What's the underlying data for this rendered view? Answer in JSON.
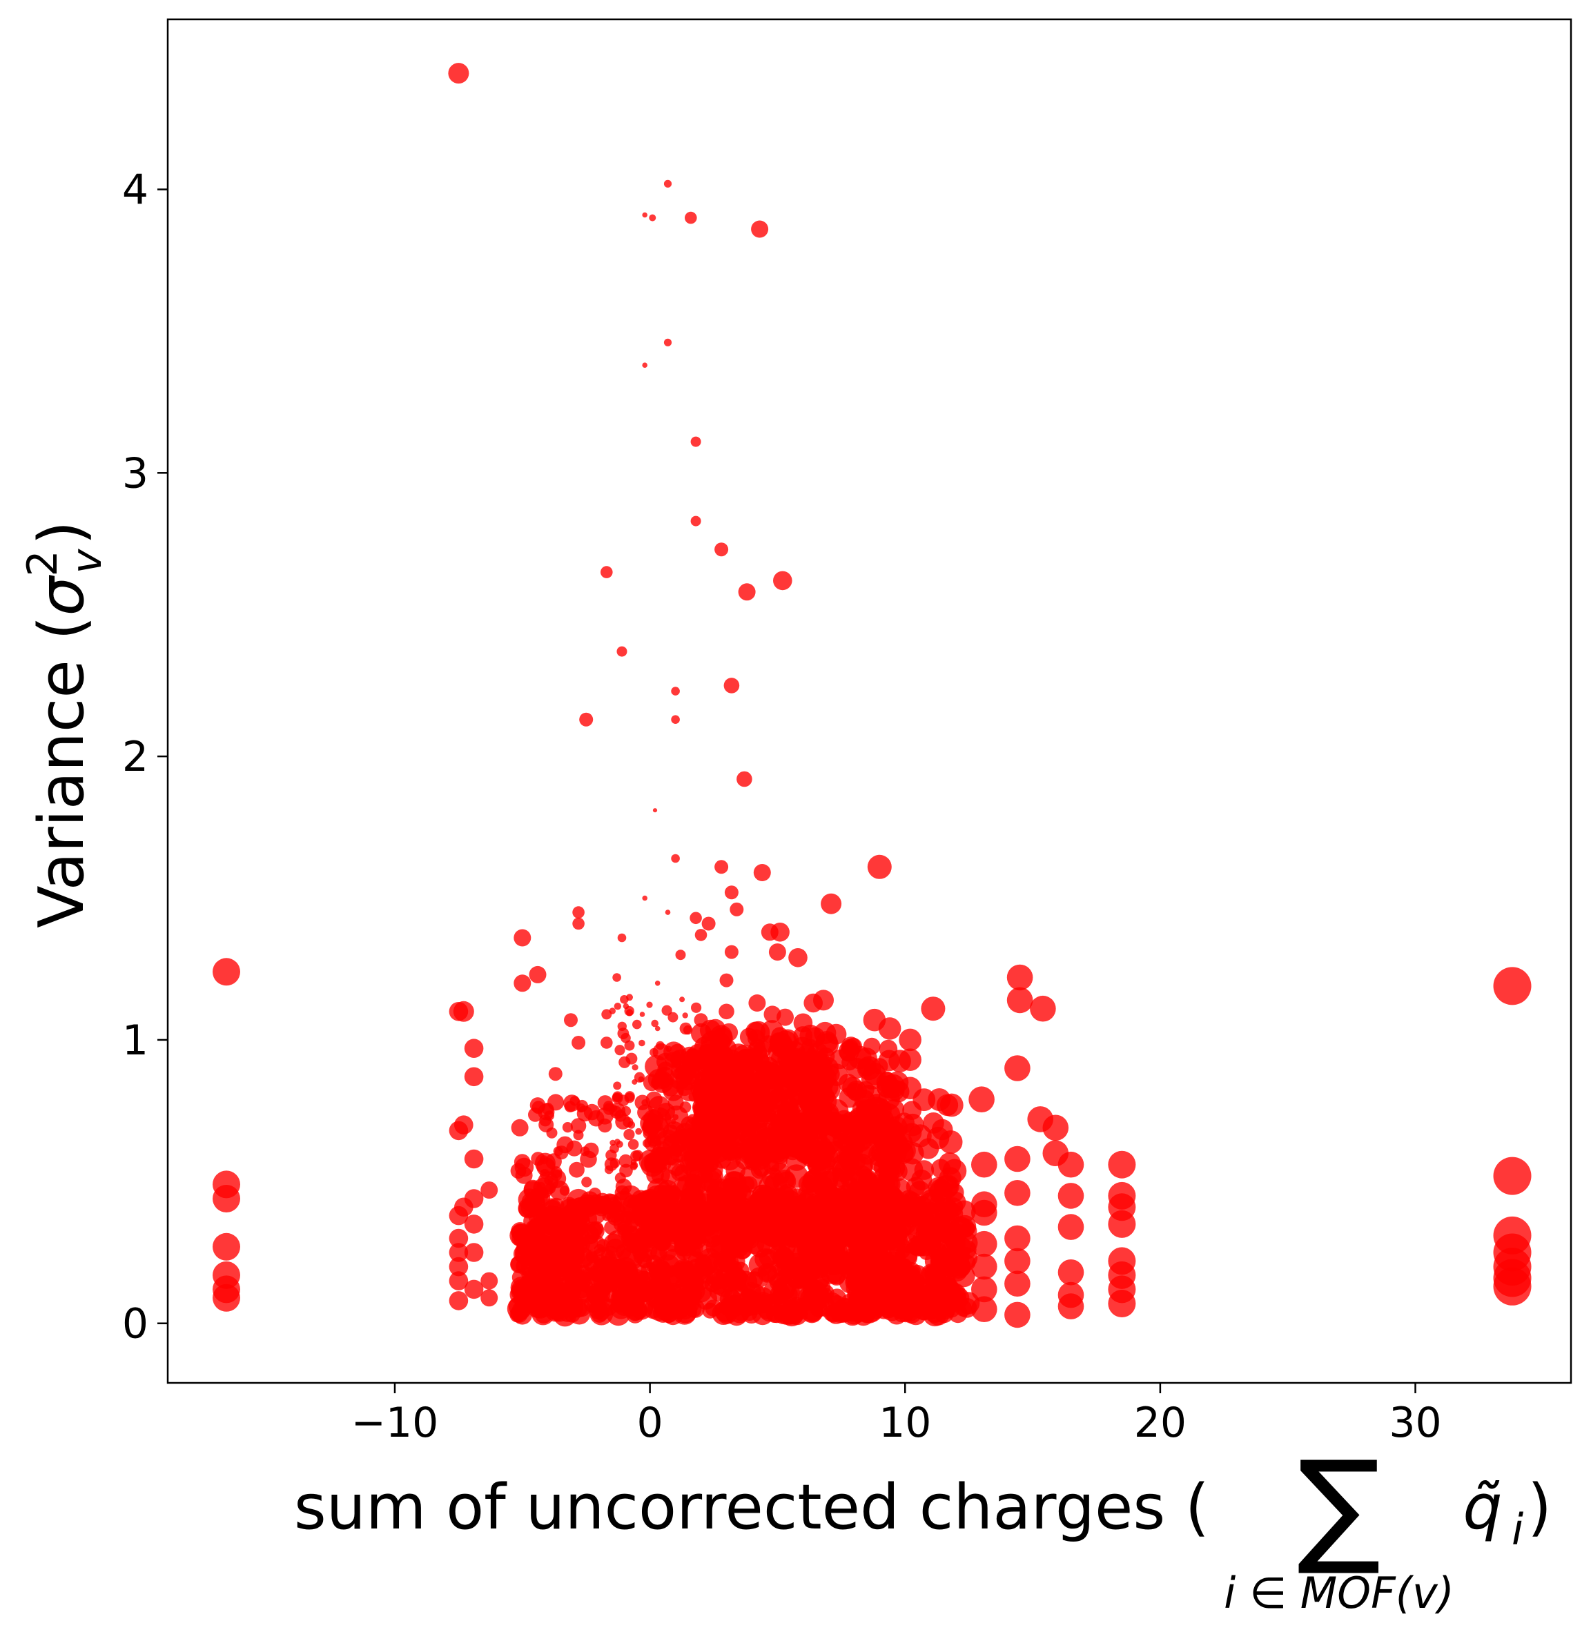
{
  "chart_data": {
    "type": "scatter",
    "title": "",
    "xlabel": {
      "prefix": "sum of uncorrected charges (",
      "sigma": "∑",
      "subscript": "i ∈ MOF(v)",
      "term": "q̃",
      "term_sub": "i",
      "suffix": ")"
    },
    "ylabel": {
      "prefix": "Variance (",
      "symbol": "σ",
      "sup": "2",
      "sub": "v",
      "suffix": ")"
    },
    "xlim": [
      -18.9,
      36.1
    ],
    "ylim": [
      -0.21,
      4.6
    ],
    "xticks": [
      -10,
      0,
      10,
      20,
      30
    ],
    "xtick_labels": [
      "−10",
      "0",
      "10",
      "20",
      "30"
    ],
    "yticks": [
      0,
      1,
      2,
      3,
      4
    ],
    "ytick_labels": [
      "0",
      "1",
      "2",
      "3",
      "4"
    ],
    "grid": false,
    "legend": "none",
    "marker_color": "#ff0000",
    "note": "Marker size varies per point; a dense cluster of several thousand points lies between x ≈ −5 and x ≈ 12 with y below ≈ 1.1.",
    "points": [
      {
        "x": -7.5,
        "y": 4.41,
        "s": 1.2
      },
      {
        "x": 0.7,
        "y": 4.02,
        "s": 0.45
      },
      {
        "x": -0.2,
        "y": 3.91,
        "s": 0.3
      },
      {
        "x": 0.1,
        "y": 3.9,
        "s": 0.4
      },
      {
        "x": 1.6,
        "y": 3.9,
        "s": 0.7
      },
      {
        "x": 4.3,
        "y": 3.86,
        "s": 1.0
      },
      {
        "x": 0.7,
        "y": 3.46,
        "s": 0.45
      },
      {
        "x": -0.2,
        "y": 3.38,
        "s": 0.3
      },
      {
        "x": 1.8,
        "y": 3.11,
        "s": 0.6
      },
      {
        "x": 1.8,
        "y": 2.83,
        "s": 0.6
      },
      {
        "x": 2.8,
        "y": 2.73,
        "s": 0.8
      },
      {
        "x": -1.7,
        "y": 2.65,
        "s": 0.7
      },
      {
        "x": 5.2,
        "y": 2.62,
        "s": 1.1
      },
      {
        "x": 3.8,
        "y": 2.58,
        "s": 1.0
      },
      {
        "x": -1.1,
        "y": 2.37,
        "s": 0.6
      },
      {
        "x": 1.0,
        "y": 2.23,
        "s": 0.5
      },
      {
        "x": 3.2,
        "y": 2.25,
        "s": 0.9
      },
      {
        "x": -2.5,
        "y": 2.13,
        "s": 0.8
      },
      {
        "x": 1.0,
        "y": 2.13,
        "s": 0.5
      },
      {
        "x": 3.7,
        "y": 1.92,
        "s": 0.9
      },
      {
        "x": 0.2,
        "y": 1.81,
        "s": 0.25
      },
      {
        "x": 9.0,
        "y": 1.61,
        "s": 1.4
      },
      {
        "x": 2.8,
        "y": 1.61,
        "s": 0.8
      },
      {
        "x": 4.4,
        "y": 1.59,
        "s": 1.0
      },
      {
        "x": 1.0,
        "y": 1.64,
        "s": 0.5
      },
      {
        "x": 3.2,
        "y": 1.52,
        "s": 0.8
      },
      {
        "x": 7.1,
        "y": 1.48,
        "s": 1.2
      },
      {
        "x": 3.4,
        "y": 1.46,
        "s": 0.8
      },
      {
        "x": -2.8,
        "y": 1.45,
        "s": 0.7
      },
      {
        "x": -2.8,
        "y": 1.41,
        "s": 0.7
      },
      {
        "x": -0.2,
        "y": 1.5,
        "s": 0.3
      },
      {
        "x": 0.7,
        "y": 1.45,
        "s": 0.3
      },
      {
        "x": 1.8,
        "y": 1.43,
        "s": 0.7
      },
      {
        "x": 2.3,
        "y": 1.41,
        "s": 0.8
      },
      {
        "x": 2.0,
        "y": 1.37,
        "s": 0.7
      },
      {
        "x": 4.7,
        "y": 1.38,
        "s": 1.0
      },
      {
        "x": 5.1,
        "y": 1.38,
        "s": 1.1
      },
      {
        "x": -5.0,
        "y": 1.36,
        "s": 1.0
      },
      {
        "x": -1.1,
        "y": 1.36,
        "s": 0.5
      },
      {
        "x": 3.2,
        "y": 1.31,
        "s": 0.8
      },
      {
        "x": 1.2,
        "y": 1.3,
        "s": 0.6
      },
      {
        "x": 5.0,
        "y": 1.31,
        "s": 1.0
      },
      {
        "x": 5.8,
        "y": 1.29,
        "s": 1.1
      },
      {
        "x": -4.4,
        "y": 1.23,
        "s": 1.0
      },
      {
        "x": -1.3,
        "y": 1.22,
        "s": 0.5
      },
      {
        "x": 0.3,
        "y": 1.2,
        "s": 0.3
      },
      {
        "x": 3.0,
        "y": 1.21,
        "s": 0.8
      },
      {
        "x": -5.0,
        "y": 1.2,
        "s": 1.0
      },
      {
        "x": -16.6,
        "y": 1.24,
        "s": 1.6
      },
      {
        "x": 33.8,
        "y": 1.19,
        "s": 2.2
      },
      {
        "x": 14.5,
        "y": 1.22,
        "s": 1.5
      },
      {
        "x": 14.5,
        "y": 1.14,
        "s": 1.5
      },
      {
        "x": 15.4,
        "y": 1.11,
        "s": 1.5
      },
      {
        "x": 11.1,
        "y": 1.11,
        "s": 1.4
      },
      {
        "x": -7.3,
        "y": 1.1,
        "s": 1.2
      },
      {
        "x": -7.5,
        "y": 1.1,
        "s": 1.1
      },
      {
        "x": -1.7,
        "y": 1.09,
        "s": 0.6
      },
      {
        "x": -3.1,
        "y": 1.07,
        "s": 0.8
      },
      {
        "x": -0.8,
        "y": 1.15,
        "s": 0.4
      },
      {
        "x": 8.8,
        "y": 1.07,
        "s": 1.3
      },
      {
        "x": 9.4,
        "y": 1.04,
        "s": 1.3
      },
      {
        "x": -6.9,
        "y": 0.97,
        "s": 1.1
      },
      {
        "x": -2.8,
        "y": 0.99,
        "s": 0.8
      },
      {
        "x": -1.7,
        "y": 0.99,
        "s": 0.7
      },
      {
        "x": -0.8,
        "y": 0.98,
        "s": 0.6
      },
      {
        "x": 10.2,
        "y": 1.0,
        "s": 1.3
      },
      {
        "x": 10.2,
        "y": 0.93,
        "s": 1.3
      },
      {
        "x": -6.9,
        "y": 0.87,
        "s": 1.1
      },
      {
        "x": 14.4,
        "y": 0.9,
        "s": 1.5
      },
      {
        "x": -3.7,
        "y": 0.88,
        "s": 0.8
      },
      {
        "x": 8.1,
        "y": 0.9,
        "s": 1.2
      },
      {
        "x": 10.2,
        "y": 0.83,
        "s": 1.3
      },
      {
        "x": 13.0,
        "y": 0.79,
        "s": 1.5
      },
      {
        "x": 8.9,
        "y": 0.77,
        "s": 1.3
      },
      {
        "x": -4.4,
        "y": 0.77,
        "s": 0.9
      },
      {
        "x": 15.3,
        "y": 0.72,
        "s": 1.5
      },
      {
        "x": 15.9,
        "y": 0.69,
        "s": 1.5
      },
      {
        "x": -7.3,
        "y": 0.7,
        "s": 1.1
      },
      {
        "x": -7.5,
        "y": 0.68,
        "s": 1.1
      },
      {
        "x": -5.1,
        "y": 0.69,
        "s": 1.0
      },
      {
        "x": 10.3,
        "y": 0.7,
        "s": 1.3
      },
      {
        "x": 15.9,
        "y": 0.6,
        "s": 1.5
      },
      {
        "x": 10.3,
        "y": 0.6,
        "s": 1.3
      },
      {
        "x": -6.9,
        "y": 0.58,
        "s": 1.1
      },
      {
        "x": 14.4,
        "y": 0.58,
        "s": 1.5
      },
      {
        "x": 16.5,
        "y": 0.56,
        "s": 1.5
      },
      {
        "x": 13.1,
        "y": 0.56,
        "s": 1.5
      },
      {
        "x": 18.5,
        "y": 0.56,
        "s": 1.6
      },
      {
        "x": 33.8,
        "y": 0.52,
        "s": 2.2
      },
      {
        "x": -16.6,
        "y": 0.49,
        "s": 1.6
      },
      {
        "x": -16.6,
        "y": 0.44,
        "s": 1.6
      },
      {
        "x": 18.5,
        "y": 0.45,
        "s": 1.6
      },
      {
        "x": 18.5,
        "y": 0.41,
        "s": 1.6
      },
      {
        "x": 18.5,
        "y": 0.35,
        "s": 1.6
      },
      {
        "x": 14.4,
        "y": 0.46,
        "s": 1.5
      },
      {
        "x": 16.5,
        "y": 0.45,
        "s": 1.5
      },
      {
        "x": 11.6,
        "y": 0.48,
        "s": 1.4
      },
      {
        "x": -6.3,
        "y": 0.47,
        "s": 1.0
      },
      {
        "x": 13.1,
        "y": 0.42,
        "s": 1.5
      },
      {
        "x": 13.1,
        "y": 0.39,
        "s": 1.5
      },
      {
        "x": 16.5,
        "y": 0.34,
        "s": 1.5
      },
      {
        "x": 33.8,
        "y": 0.31,
        "s": 2.2
      },
      {
        "x": 33.8,
        "y": 0.25,
        "s": 2.2
      },
      {
        "x": 33.8,
        "y": 0.2,
        "s": 2.2
      },
      {
        "x": 33.8,
        "y": 0.16,
        "s": 2.2
      },
      {
        "x": 33.8,
        "y": 0.13,
        "s": 2.2
      },
      {
        "x": -16.6,
        "y": 0.27,
        "s": 1.6
      },
      {
        "x": -16.6,
        "y": 0.17,
        "s": 1.6
      },
      {
        "x": -16.6,
        "y": 0.12,
        "s": 1.6
      },
      {
        "x": -16.6,
        "y": 0.09,
        "s": 1.6
      },
      {
        "x": 18.5,
        "y": 0.22,
        "s": 1.6
      },
      {
        "x": 18.5,
        "y": 0.17,
        "s": 1.6
      },
      {
        "x": 18.5,
        "y": 0.12,
        "s": 1.6
      },
      {
        "x": 18.5,
        "y": 0.07,
        "s": 1.6
      },
      {
        "x": 16.5,
        "y": 0.18,
        "s": 1.5
      },
      {
        "x": 16.5,
        "y": 0.1,
        "s": 1.5
      },
      {
        "x": 16.5,
        "y": 0.06,
        "s": 1.5
      },
      {
        "x": 14.4,
        "y": 0.3,
        "s": 1.5
      },
      {
        "x": 14.4,
        "y": 0.22,
        "s": 1.5
      },
      {
        "x": 14.4,
        "y": 0.14,
        "s": 1.5
      },
      {
        "x": 14.4,
        "y": 0.03,
        "s": 1.5
      },
      {
        "x": 13.1,
        "y": 0.28,
        "s": 1.5
      },
      {
        "x": 13.1,
        "y": 0.2,
        "s": 1.5
      },
      {
        "x": 13.1,
        "y": 0.12,
        "s": 1.5
      },
      {
        "x": 13.1,
        "y": 0.05,
        "s": 1.5
      },
      {
        "x": -7.5,
        "y": 0.38,
        "s": 1.1
      },
      {
        "x": -7.3,
        "y": 0.41,
        "s": 1.1
      },
      {
        "x": -7.5,
        "y": 0.3,
        "s": 1.1
      },
      {
        "x": -7.5,
        "y": 0.25,
        "s": 1.1
      },
      {
        "x": -7.5,
        "y": 0.2,
        "s": 1.1
      },
      {
        "x": -7.5,
        "y": 0.15,
        "s": 1.1
      },
      {
        "x": -7.5,
        "y": 0.08,
        "s": 1.1
      },
      {
        "x": -6.9,
        "y": 0.44,
        "s": 1.1
      },
      {
        "x": -6.9,
        "y": 0.35,
        "s": 1.1
      },
      {
        "x": -6.9,
        "y": 0.25,
        "s": 1.1
      },
      {
        "x": -6.9,
        "y": 0.12,
        "s": 1.1
      },
      {
        "x": -6.3,
        "y": 0.15,
        "s": 1.0
      },
      {
        "x": -6.3,
        "y": 0.09,
        "s": 1.0
      },
      {
        "x": 8.1,
        "y": 0.82,
        "s": 1.2
      },
      {
        "x": 8.8,
        "y": 0.88,
        "s": 1.3
      },
      {
        "x": 7.8,
        "y": 0.96,
        "s": 1.2
      },
      {
        "x": 7.3,
        "y": 1.02,
        "s": 1.2
      },
      {
        "x": 6.4,
        "y": 1.13,
        "s": 1.1
      },
      {
        "x": 6.8,
        "y": 1.14,
        "s": 1.2
      },
      {
        "x": 6.0,
        "y": 1.06,
        "s": 1.1
      },
      {
        "x": 4.2,
        "y": 1.13,
        "s": 1.0
      },
      {
        "x": 4.8,
        "y": 1.09,
        "s": 1.0
      },
      {
        "x": 5.3,
        "y": 1.08,
        "s": 1.0
      },
      {
        "x": 3.0,
        "y": 1.1,
        "s": 0.9
      },
      {
        "x": 2.0,
        "y": 1.07,
        "s": 0.8
      },
      {
        "x": 1.4,
        "y": 1.04,
        "s": 0.7
      },
      {
        "x": 0.4,
        "y": 0.98,
        "s": 0.5
      },
      {
        "x": 0.9,
        "y": 1.08,
        "s": 0.6
      },
      {
        "x": -0.3,
        "y": 1.09,
        "s": 0.3
      },
      {
        "x": 0.3,
        "y": 1.04,
        "s": 0.3
      }
    ],
    "clusters": [
      {
        "x_range": [
          -5.2,
          12.5
        ],
        "y_range": [
          0.03,
          0.45
        ],
        "count": 900,
        "s_range": [
          0.9,
          1.4
        ]
      },
      {
        "x_range": [
          0.0,
          9.8
        ],
        "y_range": [
          0.3,
          0.98
        ],
        "count": 650,
        "s_range": [
          0.9,
          1.4
        ]
      },
      {
        "x_range": [
          2.0,
          7.0
        ],
        "y_range": [
          0.6,
          1.05
        ],
        "count": 220,
        "s_range": [
          1.0,
          1.4
        ]
      },
      {
        "x_range": [
          -4.5,
          0.5
        ],
        "y_range": [
          0.1,
          0.8
        ],
        "count": 180,
        "s_range": [
          0.5,
          1.0
        ]
      },
      {
        "x_range": [
          -1.5,
          2.0
        ],
        "y_range": [
          0.55,
          1.15
        ],
        "count": 90,
        "s_range": [
          0.3,
          0.7
        ]
      },
      {
        "x_range": [
          -5.2,
          -3.5
        ],
        "y_range": [
          0.05,
          0.6
        ],
        "count": 70,
        "s_range": [
          0.9,
          1.2
        ]
      },
      {
        "x_range": [
          8.0,
          12.0
        ],
        "y_range": [
          0.05,
          0.8
        ],
        "count": 150,
        "s_range": [
          1.1,
          1.4
        ]
      }
    ]
  }
}
